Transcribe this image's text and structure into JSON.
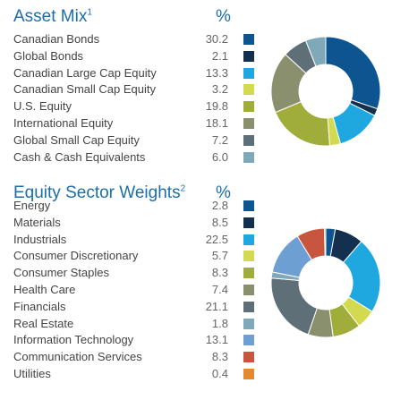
{
  "chart_data": [
    {
      "type": "pie",
      "title": "Asset Mix",
      "title_note": "1",
      "value_header": "%",
      "categories": [
        "Canadian Bonds",
        "Global Bonds",
        "Canadian Large Cap Equity",
        "Canadian Small Cap Equity",
        "U.S. Equity",
        "International Equity",
        "Global Small Cap Equity",
        "Cash & Cash Equivalents"
      ],
      "values": [
        30.2,
        2.1,
        13.3,
        3.2,
        19.8,
        18.1,
        7.2,
        6.0
      ],
      "value_labels": [
        "30.2",
        "2.1",
        "13.3",
        "3.2",
        "19.8",
        "18.1",
        "7.2",
        "6.0"
      ],
      "colors": [
        "#0d5590",
        "#14304f",
        "#1fa8e0",
        "#d4da4f",
        "#a1ad3a",
        "#8a8f6e",
        "#5f6f78",
        "#7fa8b8"
      ],
      "donut": true,
      "legend": "left"
    },
    {
      "type": "pie",
      "title": "Equity Sector Weights",
      "title_note": "2",
      "value_header": "%",
      "categories": [
        "Energy",
        "Materials",
        "Industrials",
        "Consumer Discretionary",
        "Consumer Staples",
        "Health Care",
        "Financials",
        "Real Estate",
        "Information Technology",
        "Communication Services",
        "Utilities"
      ],
      "values": [
        2.8,
        8.5,
        22.5,
        5.7,
        8.3,
        7.4,
        21.1,
        1.8,
        13.1,
        8.3,
        0.4
      ],
      "value_labels": [
        "2.8",
        "8.5",
        "22.5",
        "5.7",
        "8.3",
        "7.4",
        "21.1",
        "1.8",
        "13.1",
        "8.3",
        "0.4"
      ],
      "colors": [
        "#0d5590",
        "#14304f",
        "#1fa8e0",
        "#d4da4f",
        "#a1ad3a",
        "#8a8f6e",
        "#5f6f78",
        "#7fa8b8",
        "#6e9fd2",
        "#c8553d",
        "#e5892e"
      ],
      "donut": true,
      "legend": "left"
    }
  ]
}
